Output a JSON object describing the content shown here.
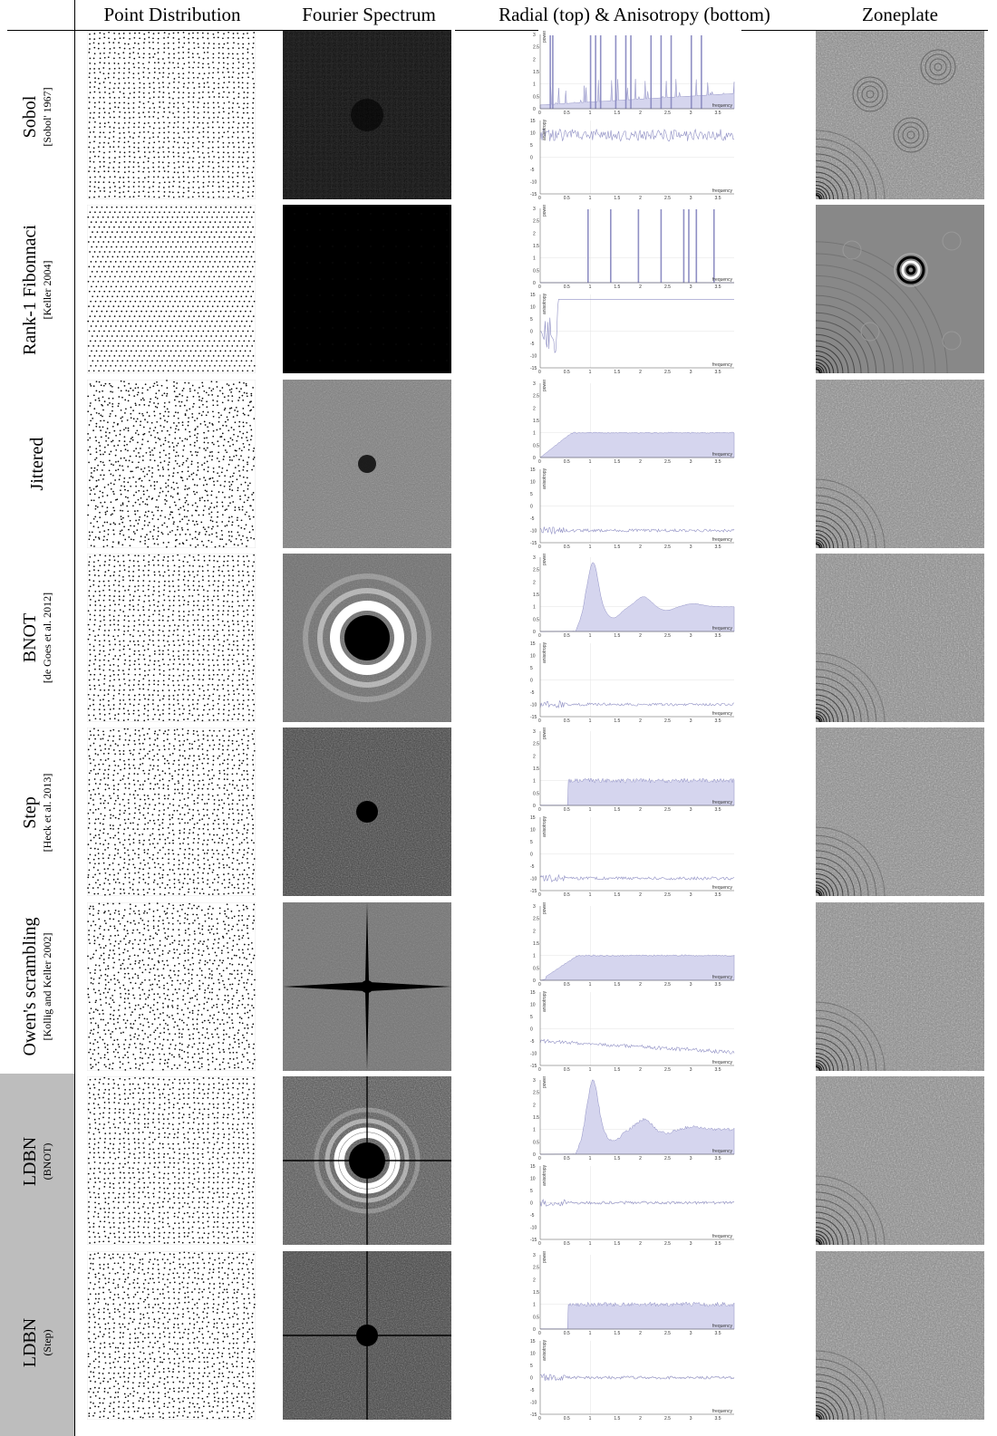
{
  "headers": {
    "points": "Point Distribution",
    "fourier": "Fourier Spectrum",
    "radial": "Radial (top) & Anisotropy (bottom)",
    "zoneplate": "Zoneplate"
  },
  "axis_labels": {
    "power": "power",
    "anisotropy": "anisotropy",
    "frequency": "frequency"
  },
  "rows": [
    {
      "name": "Sobol",
      "cite": "[Sobol' 1967]",
      "highlight": false
    },
    {
      "name": "Rank-1 Fibonnaci",
      "cite": "[Keller 2004]",
      "highlight": false
    },
    {
      "name": "Jittered",
      "cite": "",
      "highlight": false
    },
    {
      "name": "BNOT",
      "cite": "[de Goes et al. 2012]",
      "highlight": false
    },
    {
      "name": "Step",
      "cite": "[Heck et al. 2013]",
      "highlight": false
    },
    {
      "name": "Owen's scrambling",
      "cite": "[Kollig and Keller 2002]",
      "highlight": false
    },
    {
      "name": "LDBN",
      "cite": "(BNOT)",
      "highlight": true
    },
    {
      "name": "LDBN",
      "cite": "(Step)",
      "highlight": true
    }
  ],
  "chart_data": {
    "type": "area",
    "x_ticks": [
      "0",
      "0.5",
      "1",
      "1.5",
      "2",
      "2.5",
      "3",
      "3.5"
    ],
    "power_ticks": [
      "3",
      "2.5",
      "2",
      "1.5",
      "1",
      "0.5",
      "0"
    ],
    "anisotropy_ticks": [
      "15",
      "10",
      "5",
      "0",
      "-5",
      "-10",
      "-15"
    ],
    "xlim": [
      0,
      3.85
    ],
    "power_ylim": [
      0,
      3
    ],
    "anisotropy_ylim": [
      -15,
      15
    ],
    "panels": [
      {
        "row": "Sobol",
        "radial": "spikes",
        "spikes": [
          0.2,
          0.25,
          1.0,
          1.1,
          1.2,
          1.5,
          1.7,
          1.8,
          2.2,
          2.4,
          2.6,
          3.0,
          3.2
        ],
        "anisotropy_level": 9
      },
      {
        "row": "Rank-1 Fibonnaci",
        "radial": "spikes",
        "spikes": [
          0.95,
          1.4,
          1.95,
          2.4,
          2.85,
          2.95,
          3.1,
          3.45
        ],
        "anisotropy_level": 10
      },
      {
        "row": "Jittered",
        "radial": "jitter",
        "anisotropy_level": -10
      },
      {
        "row": "BNOT",
        "radial": "bnot",
        "peak": 2.8,
        "anisotropy_level": -10
      },
      {
        "row": "Step",
        "radial": "step",
        "step_at": 0.55,
        "anisotropy_level": -10
      },
      {
        "row": "Owen's scrambling",
        "radial": "owen",
        "anisotropy_level": -8
      },
      {
        "row": "LDBN (BNOT)",
        "radial": "bnot",
        "peak": 3.0,
        "anisotropy_level": 0
      },
      {
        "row": "LDBN (Step)",
        "radial": "step",
        "step_at": 0.55,
        "anisotropy_level": 0
      }
    ]
  }
}
